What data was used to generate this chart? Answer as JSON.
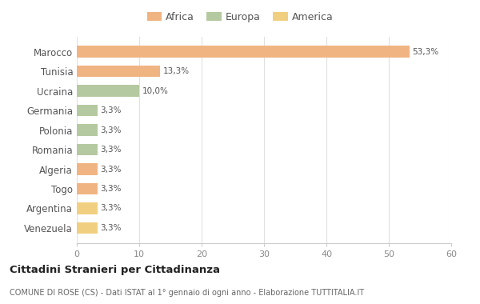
{
  "countries": [
    "Marocco",
    "Tunisia",
    "Ucraina",
    "Germania",
    "Polonia",
    "Romania",
    "Algeria",
    "Togo",
    "Argentina",
    "Venezuela"
  ],
  "values": [
    53.3,
    13.3,
    10.0,
    3.3,
    3.3,
    3.3,
    3.3,
    3.3,
    3.3,
    3.3
  ],
  "labels": [
    "53,3%",
    "13,3%",
    "10,0%",
    "3,3%",
    "3,3%",
    "3,3%",
    "3,3%",
    "3,3%",
    "3,3%",
    "3,3%"
  ],
  "colors": [
    "#F0B482",
    "#F0B482",
    "#B5C9A0",
    "#B5C9A0",
    "#B5C9A0",
    "#B5C9A0",
    "#F0B482",
    "#F0B482",
    "#F0D080",
    "#F0D080"
  ],
  "legend_labels": [
    "Africa",
    "Europa",
    "America"
  ],
  "legend_colors": [
    "#F0B482",
    "#B5C9A0",
    "#F0D080"
  ],
  "title": "Cittadini Stranieri per Cittadinanza",
  "subtitle": "COMUNE DI ROSE (CS) - Dati ISTAT al 1° gennaio di ogni anno - Elaborazione TUTTITALIA.IT",
  "xlim": [
    0,
    60
  ],
  "xticks": [
    0,
    10,
    20,
    30,
    40,
    50,
    60
  ],
  "background_color": "#ffffff",
  "grid_color": "#e0e0e0"
}
